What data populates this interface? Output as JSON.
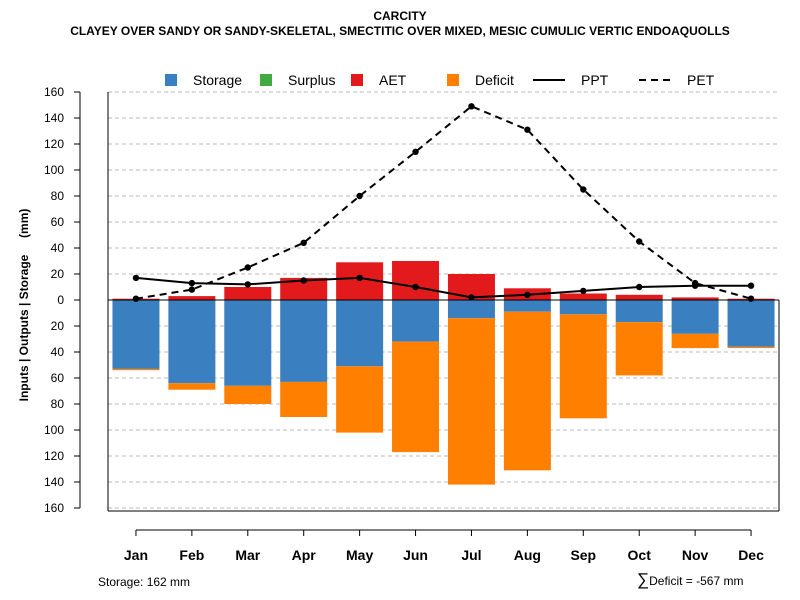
{
  "title": "CARCITY",
  "subtitle": "CLAYEY OVER SANDY OR SANDY-SKELETAL, SMECTITIC OVER MIXED, MESIC CUMULIC VERTIC ENDOAQUOLLS",
  "footer": {
    "storage_note": "Storage: 162 mm",
    "deficit_symbol": "∑",
    "deficit_note": "Deficit = -567 mm"
  },
  "chart_data": {
    "type": "bar",
    "categories": [
      "Jan",
      "Feb",
      "Mar",
      "Apr",
      "May",
      "Jun",
      "Jul",
      "Aug",
      "Sep",
      "Oct",
      "Nov",
      "Dec"
    ],
    "ylabel": "Inputs | Outputs | Storage     (mm)",
    "ylim": [
      -160,
      160
    ],
    "yticks": [
      160,
      140,
      120,
      100,
      80,
      60,
      40,
      20,
      0,
      20,
      40,
      60,
      80,
      100,
      120,
      140,
      160
    ],
    "legend": [
      {
        "label": "Storage",
        "kind": "box",
        "color": "#3a7fbf"
      },
      {
        "label": "Surplus",
        "kind": "box",
        "color": "#43a940"
      },
      {
        "label": "AET",
        "kind": "box",
        "color": "#e31a1c"
      },
      {
        "label": "Deficit",
        "kind": "box",
        "color": "#ff8000"
      },
      {
        "label": "PPT",
        "kind": "solid",
        "color": "#000000"
      },
      {
        "label": "PET",
        "kind": "dashed",
        "color": "#000000"
      }
    ],
    "series": [
      {
        "name": "AET",
        "color": "#e31a1c",
        "values": [
          1,
          3,
          10,
          17,
          29,
          30,
          20,
          9,
          5,
          4,
          2,
          1
        ]
      },
      {
        "name": "Storage",
        "color": "#3a7fbf",
        "values": [
          53,
          64,
          66,
          63,
          51,
          32,
          14,
          9,
          11,
          17,
          26,
          36
        ]
      },
      {
        "name": "Deficit",
        "color": "#ff8000",
        "values": [
          1,
          5,
          14,
          27,
          51,
          85,
          128,
          122,
          80,
          41,
          11,
          1
        ]
      },
      {
        "name": "PPT",
        "color": "#000000",
        "values": [
          17,
          13,
          12,
          15,
          17,
          10,
          2,
          4,
          7,
          10,
          11,
          11
        ]
      },
      {
        "name": "PET",
        "color": "#000000",
        "values": [
          1,
          8,
          25,
          44,
          80,
          114,
          149,
          131,
          85,
          45,
          13,
          1
        ]
      }
    ]
  }
}
